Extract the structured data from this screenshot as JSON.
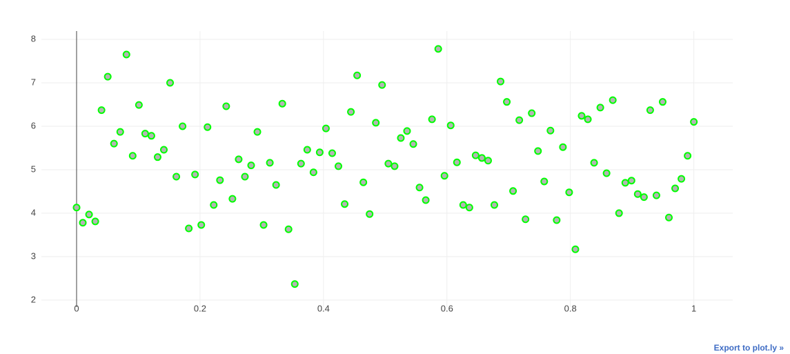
{
  "chart_data": {
    "type": "scatter",
    "x": [
      0,
      0.0101,
      0.0202,
      0.0303,
      0.0404,
      0.0505,
      0.0606,
      0.0707,
      0.0808,
      0.0909,
      0.101,
      0.1111,
      0.1212,
      0.1313,
      0.1414,
      0.1515,
      0.1616,
      0.1717,
      0.1818,
      0.1919,
      0.202,
      0.2121,
      0.2222,
      0.2323,
      0.2424,
      0.2525,
      0.2626,
      0.2727,
      0.2828,
      0.2929,
      0.303,
      0.3131,
      0.3232,
      0.3333,
      0.3434,
      0.3535,
      0.3636,
      0.3737,
      0.3838,
      0.3939,
      0.404,
      0.4141,
      0.4242,
      0.4343,
      0.4444,
      0.4545,
      0.4646,
      0.4747,
      0.4848,
      0.4949,
      0.5051,
      0.5152,
      0.5253,
      0.5354,
      0.5455,
      0.5556,
      0.5657,
      0.5758,
      0.5859,
      0.596,
      0.6061,
      0.6162,
      0.6263,
      0.6364,
      0.6465,
      0.6566,
      0.6667,
      0.6768,
      0.6869,
      0.697,
      0.7071,
      0.7172,
      0.7273,
      0.7374,
      0.7475,
      0.7576,
      0.7677,
      0.7778,
      0.7879,
      0.798,
      0.8081,
      0.8182,
      0.8283,
      0.8384,
      0.8485,
      0.8586,
      0.8687,
      0.8788,
      0.8889,
      0.899,
      0.9091,
      0.9192,
      0.9293,
      0.9394,
      0.9495,
      0.9596,
      0.9697,
      0.9798,
      0.9899,
      1
    ],
    "values": [
      4.13,
      3.78,
      3.97,
      3.81,
      6.37,
      7.14,
      5.6,
      5.87,
      7.65,
      5.32,
      6.49,
      5.83,
      5.78,
      5.29,
      5.46,
      7.0,
      4.84,
      6.0,
      3.65,
      4.89,
      3.73,
      5.98,
      4.19,
      4.76,
      6.46,
      4.33,
      5.24,
      4.84,
      5.1,
      5.87,
      3.73,
      5.16,
      4.65,
      6.52,
      3.63,
      2.37,
      5.14,
      5.46,
      4.94,
      5.4,
      5.95,
      5.38,
      5.08,
      4.21,
      6.33,
      7.17,
      4.71,
      3.98,
      6.08,
      6.95,
      5.14,
      5.08,
      5.73,
      5.89,
      5.59,
      4.59,
      4.3,
      6.16,
      7.78,
      4.86,
      6.02,
      5.17,
      4.19,
      4.13,
      5.33,
      5.27,
      5.21,
      4.19,
      7.03,
      6.56,
      4.51,
      6.14,
      3.86,
      6.3,
      5.43,
      4.73,
      5.9,
      3.84,
      5.52,
      4.48,
      3.17,
      6.24,
      6.16,
      5.16,
      6.43,
      4.92,
      6.6,
      4.0,
      4.7,
      4.75,
      4.44,
      4.37,
      6.37,
      4.41,
      6.56,
      3.9,
      4.57,
      4.79,
      5.32,
      6.1
    ],
    "color": "#b4b4b4",
    "marker_line_color": "#00ff00",
    "xlim": [
      -0.057,
      1.063
    ],
    "ylim": [
      1.84,
      8.19
    ],
    "xticks": [
      0,
      0.2,
      0.4,
      0.6,
      0.8,
      1
    ],
    "yticks": [
      2,
      3,
      4,
      5,
      6,
      7,
      8
    ],
    "grid": true,
    "zeroline": true
  },
  "export_link": "Export to plot.ly »"
}
